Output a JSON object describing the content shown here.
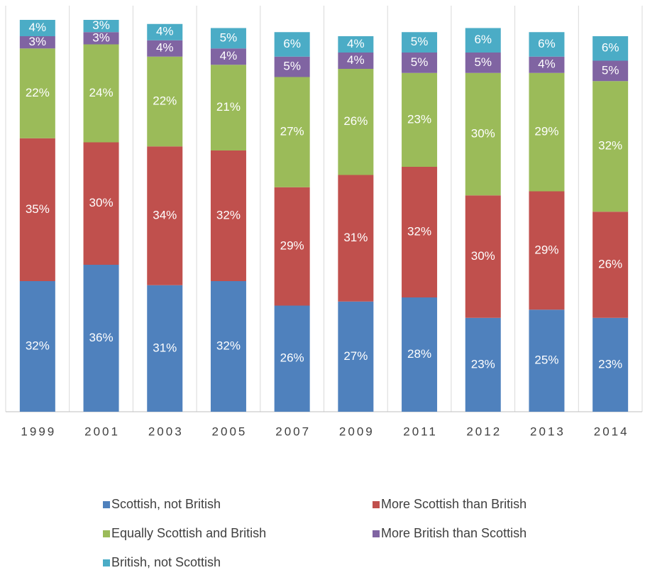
{
  "chart_data": {
    "type": "bar",
    "stacked": true,
    "categories": [
      "1999",
      "2001",
      "2003",
      "2005",
      "2007",
      "2009",
      "2011",
      "2012",
      "2013",
      "2014"
    ],
    "series": [
      {
        "name": "Scottish, not British",
        "color": "#4f81bd",
        "values": [
          32,
          36,
          31,
          32,
          26,
          27,
          28,
          23,
          25,
          23
        ],
        "value_labels": [
          "32%",
          "36%",
          "31%",
          "32%",
          "26%",
          "27%",
          "28%",
          "23%",
          "25%",
          "23%"
        ]
      },
      {
        "name": "More Scottish than British",
        "color": "#c0504d",
        "values": [
          35,
          30,
          34,
          32,
          29,
          31,
          32,
          30,
          29,
          26
        ],
        "value_labels": [
          "35%",
          "30%",
          "34%",
          "32%",
          "29%",
          "31%",
          "32%",
          "30%",
          "29%",
          "26%"
        ]
      },
      {
        "name": "Equally Scottish and British",
        "color": "#9bbb59",
        "values": [
          22,
          24,
          22,
          21,
          27,
          26,
          23,
          30,
          29,
          32
        ],
        "value_labels": [
          "22%",
          "24%",
          "22%",
          "21%",
          "27%",
          "26%",
          "23%",
          "30%",
          "29%",
          "32%"
        ]
      },
      {
        "name": "More British than Scottish",
        "color": "#8064a2",
        "values": [
          3,
          3,
          4,
          4,
          5,
          4,
          5,
          5,
          4,
          5
        ],
        "value_labels": [
          "3%",
          "3%",
          "4%",
          "4%",
          "5%",
          "4%",
          "5%",
          "5%",
          "4%",
          "5%"
        ]
      },
      {
        "name": "British, not Scottish",
        "color": "#4bacc6",
        "values": [
          4,
          3,
          4,
          5,
          6,
          4,
          5,
          6,
          6,
          6
        ],
        "value_labels": [
          "4%",
          "3%",
          "4%",
          "5%",
          "6%",
          "4%",
          "5%",
          "6%",
          "6%",
          "6%"
        ]
      }
    ]
  }
}
